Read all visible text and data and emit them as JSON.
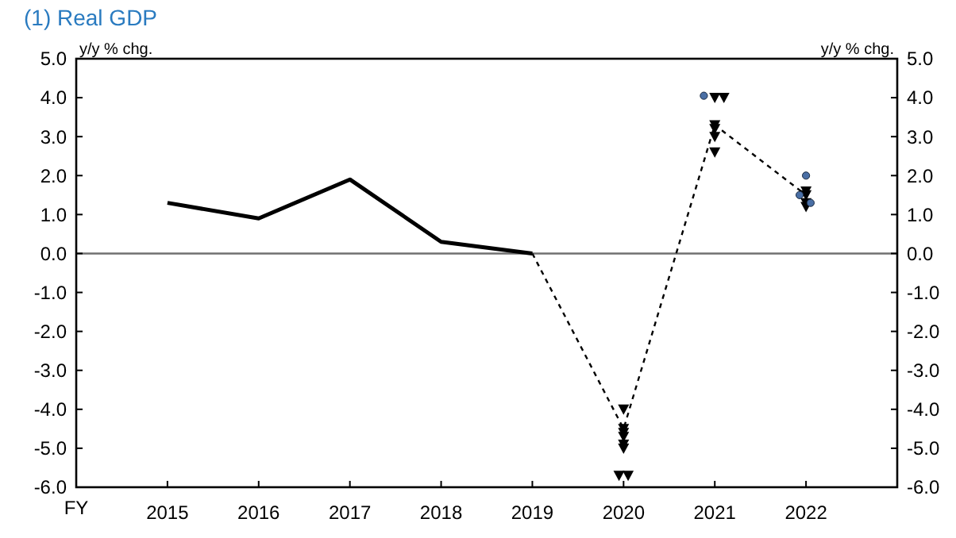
{
  "chart_data": {
    "type": "line",
    "title": "(1) Real GDP",
    "xlabel": "FY",
    "ylabel": "y/y % chg.",
    "y2label": "y/y % chg.",
    "xlim": [
      2014,
      2023
    ],
    "xticks": [
      2015,
      2016,
      2017,
      2018,
      2019,
      2020,
      2021,
      2022
    ],
    "ylim": [
      -6,
      5
    ],
    "yticks": [
      {
        "value": -6,
        "label": "-6.0"
      },
      {
        "value": -5,
        "label": "-5.0"
      },
      {
        "value": -4,
        "label": "-4.0"
      },
      {
        "value": -3,
        "label": "-3.0"
      },
      {
        "value": -2,
        "label": "-2.0"
      },
      {
        "value": -1,
        "label": "-1.0"
      },
      {
        "value": 0,
        "label": "0.0"
      },
      {
        "value": 1,
        "label": "1.0"
      },
      {
        "value": 2,
        "label": "2.0"
      },
      {
        "value": 3,
        "label": "3.0"
      },
      {
        "value": 4,
        "label": "4.0"
      },
      {
        "value": 5,
        "label": "5.0"
      }
    ],
    "y2lim": [
      -6,
      5
    ],
    "y2ticks": [
      {
        "value": -6,
        "label": "-6.0"
      },
      {
        "value": -5,
        "label": "-5.0"
      },
      {
        "value": -4,
        "label": "-4.0"
      },
      {
        "value": -3,
        "label": "-3.0"
      },
      {
        "value": -2,
        "label": "-2.0"
      },
      {
        "value": -1,
        "label": "-1.0"
      },
      {
        "value": 0,
        "label": "0.0"
      },
      {
        "value": 1,
        "label": "1.0"
      },
      {
        "value": 2,
        "label": "2.0"
      },
      {
        "value": 3,
        "label": "3.0"
      },
      {
        "value": 4,
        "label": "4.0"
      },
      {
        "value": 5,
        "label": "5.0"
      }
    ],
    "grid": false,
    "ref_lines": [
      {
        "axis": "y",
        "value": 0,
        "color": "#707070"
      }
    ],
    "series": [
      {
        "color": "#000000",
        "line_style": "solid",
        "x": [
          2015,
          2016,
          2017,
          2018,
          2019
        ],
        "values": [
          1.3,
          0.9,
          1.9,
          0.3,
          0.0
        ]
      },
      {
        "color": "#000000",
        "line_style": "dashed",
        "x": [
          2019,
          2020,
          2021,
          2022
        ],
        "values": [
          0.0,
          -4.5,
          3.3,
          1.5
        ]
      },
      {
        "type": "scatter",
        "color": "#000000",
        "marker": "triangle",
        "x": [
          2020,
          2020,
          2020,
          2020,
          2020,
          2020,
          2019.95,
          2020.05,
          2021,
          2021.1,
          2021,
          2021,
          2021,
          2021,
          2022,
          2022,
          2022,
          2022
        ],
        "values": [
          -4.0,
          -4.5,
          -4.6,
          -4.7,
          -4.9,
          -5.0,
          -5.7,
          -5.7,
          4.0,
          4.0,
          3.3,
          3.2,
          3.0,
          2.6,
          1.6,
          1.5,
          1.3,
          1.2
        ]
      },
      {
        "type": "scatter",
        "color": "#4a6fa5",
        "marker": "circle",
        "x": [
          2020.88,
          2022,
          2021.93,
          2022.05
        ],
        "values": [
          4.05,
          2.0,
          1.5,
          1.3
        ]
      }
    ]
  }
}
